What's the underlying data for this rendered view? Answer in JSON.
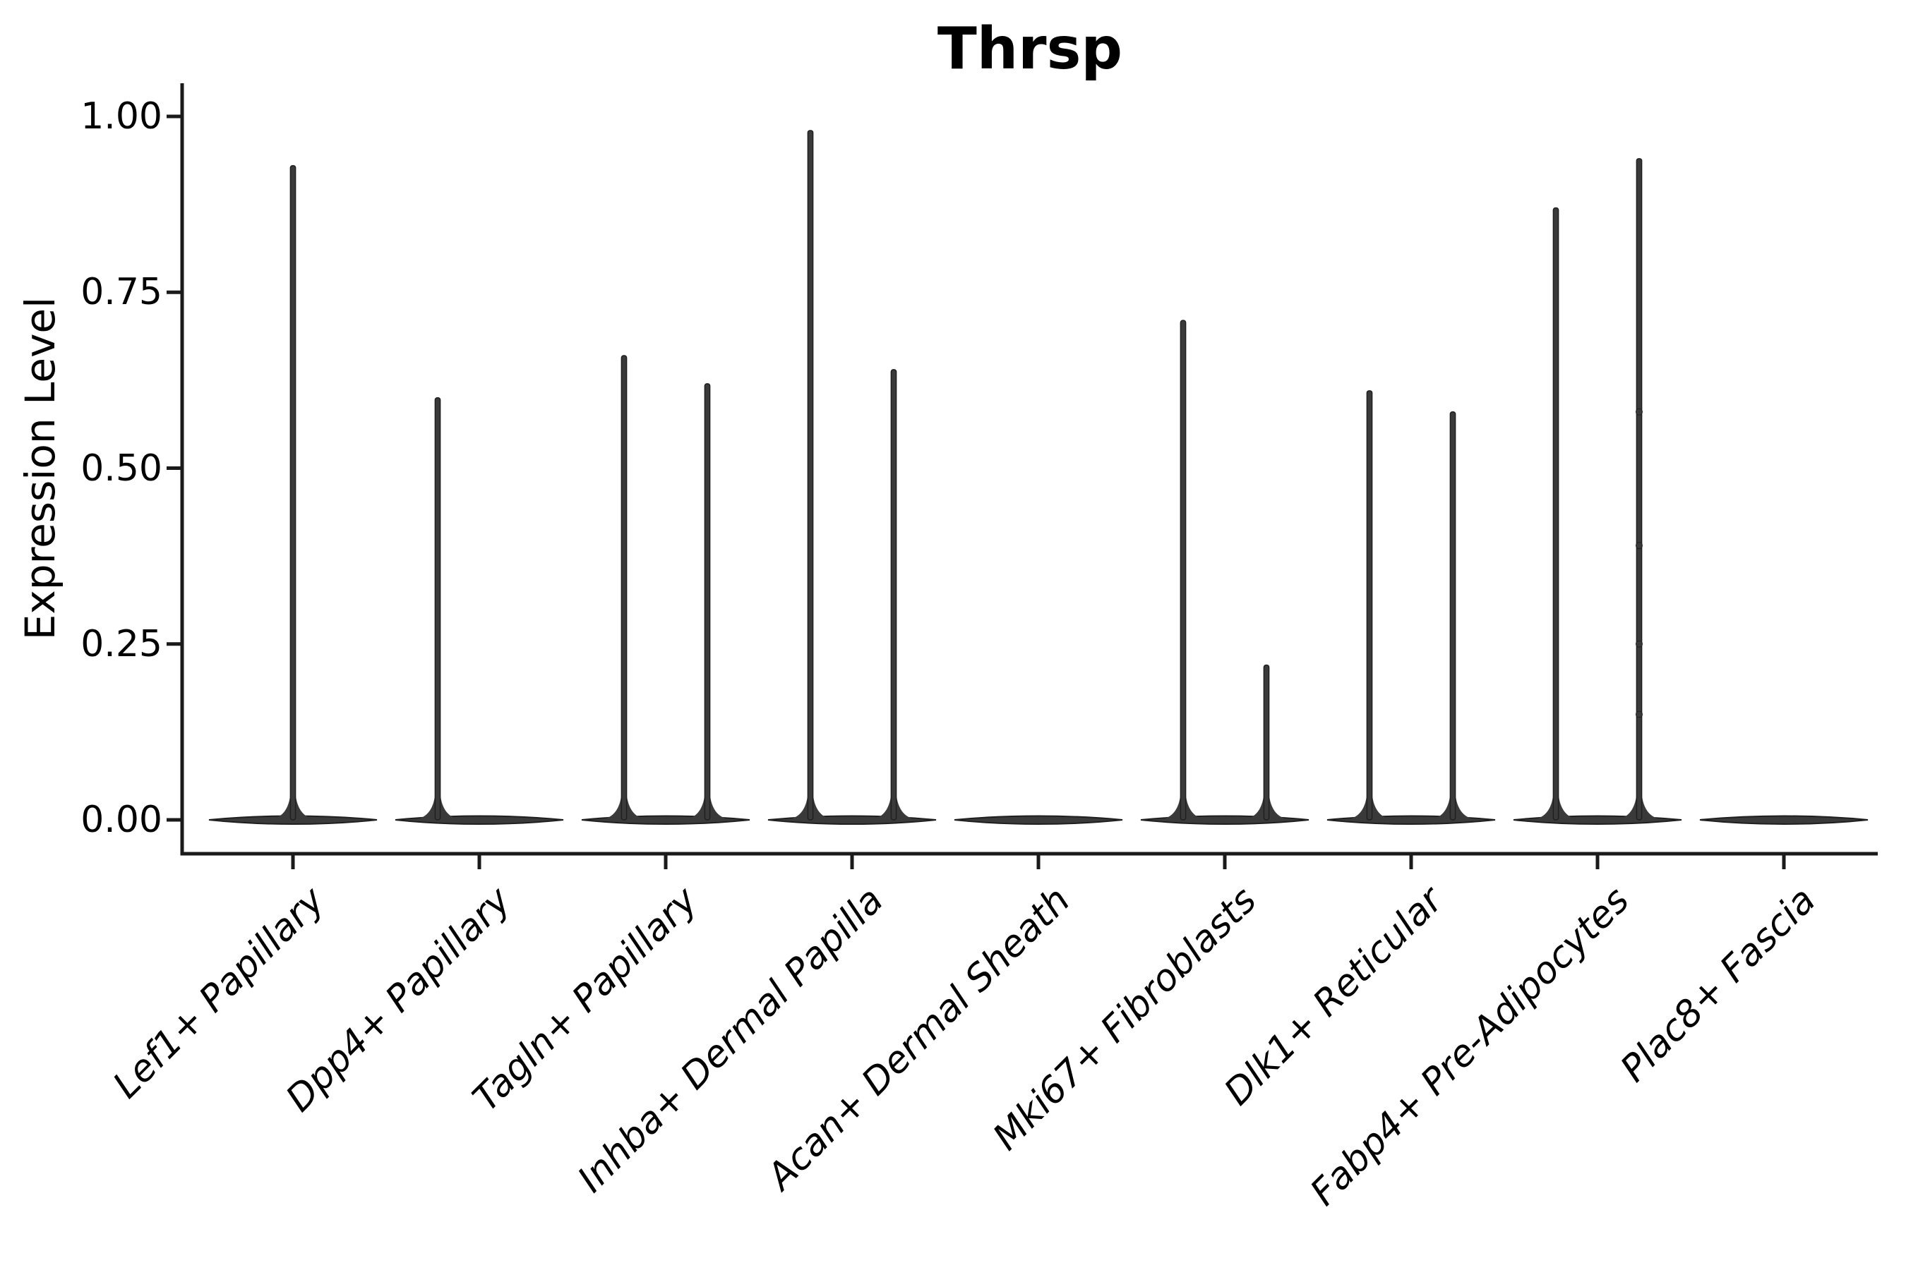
{
  "figure": {
    "title": "Thrsp",
    "ylabel": "Expression Level",
    "background_color": "#ffffff",
    "ink_color": "#1a1a1a",
    "violin_fill_color": "#3a3a3a",
    "violin_stroke_color": "#1f1f1f"
  },
  "chart_data": {
    "type": "violin",
    "title": "Thrsp",
    "xlabel": "",
    "ylabel": "Expression Level",
    "ylim": [
      0.0,
      1.0
    ],
    "yticks": [
      0.0,
      0.25,
      0.5,
      0.75,
      1.0
    ],
    "ytick_labels": [
      "0.00",
      "0.25",
      "0.50",
      "0.75",
      "1.00"
    ],
    "grid": false,
    "legend": false,
    "x_tick_label_rotation_deg": 45,
    "x_tick_label_style": "italic",
    "categories": [
      "Lef1+ Papillary",
      "Dpp4+ Papillary",
      "Tagln+ Papillary",
      "Inhba+ Dermal Papilla",
      "Acan+ Dermal Sheath",
      "Mki67+ Fibroblasts",
      "Dlk1+ Reticular",
      "Fabp4+ Pre-Adipocytes",
      "Plac8+ Fascia"
    ],
    "violins": [
      {
        "category": "Lef1+ Papillary",
        "violins": [
          {
            "side": "center",
            "max": 0.93
          }
        ]
      },
      {
        "category": "Dpp4+ Papillary",
        "violins": [
          {
            "side": "left",
            "max": 0.6
          },
          {
            "side": "right",
            "max": 0.0
          }
        ]
      },
      {
        "category": "Tagln+ Papillary",
        "violins": [
          {
            "side": "left",
            "max": 0.66
          },
          {
            "side": "right",
            "max": 0.62
          }
        ]
      },
      {
        "category": "Inhba+ Dermal Papilla",
        "violins": [
          {
            "side": "left",
            "max": 0.98
          },
          {
            "side": "right",
            "max": 0.64
          }
        ]
      },
      {
        "category": "Acan+ Dermal Sheath",
        "violins": [
          {
            "side": "left",
            "max": 0.0
          },
          {
            "side": "right",
            "max": 0.0
          }
        ]
      },
      {
        "category": "Mki67+ Fibroblasts",
        "violins": [
          {
            "side": "left",
            "max": 0.71
          },
          {
            "side": "right",
            "max": 0.22
          }
        ]
      },
      {
        "category": "Dlk1+ Reticular",
        "violins": [
          {
            "side": "left",
            "max": 0.61
          },
          {
            "side": "right",
            "max": 0.58
          }
        ]
      },
      {
        "category": "Fabp4+ Pre-Adipocytes",
        "violins": [
          {
            "side": "left",
            "max": 0.87
          },
          {
            "side": "right",
            "max": 0.94
          }
        ]
      },
      {
        "category": "Plac8+ Fascia",
        "violins": [
          {
            "side": "left",
            "max": 0.0
          },
          {
            "side": "right",
            "max": 0.0
          }
        ]
      }
    ],
    "jitter_points": [
      {
        "category": "Fabp4+ Pre-Adipocytes",
        "side": "right",
        "values": [
          0.58,
          0.39,
          0.25,
          0.15
        ]
      }
    ],
    "baseline_note": "all categories show a wide flat density bar at expression 0"
  }
}
